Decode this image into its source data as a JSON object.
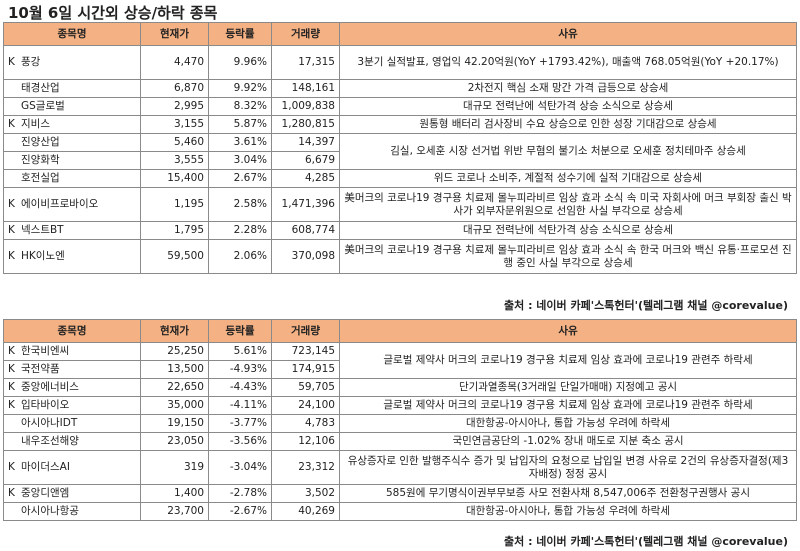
{
  "title": "10월 6일  시간외 상승/하락 종목",
  "headers": [
    "종목명",
    "현재가",
    "등락률",
    "거래량",
    "사유"
  ],
  "source": "출처 : 네이버 카페'스톡헌터'(텔레그램 채널 @corevalue)",
  "rising": [
    {
      "prefix": "K",
      "name": "풍강",
      "price": "4,470",
      "rate": "9.96%",
      "volume": "17,315",
      "reason": "3분기 실적발표, 영업익 42.20억원(YoY +1793.42%), 매출액 768.05억원(YoY +20.17%)"
    },
    {
      "prefix": "",
      "name": "태경산업",
      "price": "6,870",
      "rate": "9.92%",
      "volume": "148,161",
      "reason": "2차전지 핵심 소재 망간 가격 급등으로 상승세"
    },
    {
      "prefix": "",
      "name": "GS글로벌",
      "price": "2,995",
      "rate": "8.32%",
      "volume": "1,009,838",
      "reason": "대규모 전력난에 석탄가격 상승 소식으로 상승세"
    },
    {
      "prefix": "K",
      "name": "지비스",
      "price": "3,155",
      "rate": "5.87%",
      "volume": "1,280,815",
      "reason": "원통형 배터리 검사장비 수요 상승으로 인한 성장 기대감으로 상승세"
    },
    {
      "prefix": "",
      "name": "진양산업",
      "price": "5,460",
      "rate": "3.61%",
      "volume": "14,397",
      "reason": ""
    },
    {
      "prefix": "",
      "name": "진양화학",
      "price": "3,555",
      "rate": "3.04%",
      "volume": "6,679",
      "reason": ""
    },
    {
      "prefix": "",
      "name": "호전실업",
      "price": "15,400",
      "rate": "2.67%",
      "volume": "4,285",
      "reason": "위드 코로나 소비주, 계절적 성수기에 실적 기대감으로 상승세"
    },
    {
      "prefix": "K",
      "name": "에이비프로바이오",
      "price": "1,195",
      "rate": "2.58%",
      "volume": "1,471,396",
      "reason": "美머크의 코로나19 경구용 치료제 몰누피라비르 임상 효과 소식 속 미국 자회사에 머크 부회장 출신 박사가 외부자문위원으로 선임한 사실 부각으로 상승세"
    },
    {
      "prefix": "K",
      "name": "넥스트BT",
      "price": "1,795",
      "rate": "2.28%",
      "volume": "608,774",
      "reason": "대규모 전력난에 석탄가격 상승 소식으로 상승세"
    },
    {
      "prefix": "K",
      "name": "HK이노엔",
      "price": "59,500",
      "rate": "2.06%",
      "volume": "370,098",
      "reason": "美머크의 코로나19 경구용 치료제 몰누피라비르 임상 효과 소식 속 한국 머크와 백신 유통·프로모션 진행 중인 사실 부각으로 상승세"
    }
  ],
  "rising_merged_reason": "김실, 오세훈 시장 선거법 위반 무혐의 불기소 처분으로 오세훈 정치테마주 상승세",
  "falling": [
    {
      "prefix": "K",
      "name": "한국비엔씨",
      "price": "25,250",
      "rate": "5.61%",
      "volume": "723,145",
      "reason": "글로벌 제약사 머크의 코로나19 경구용 치료제 임상 효과에 코로나19 관련주 하락세"
    },
    {
      "prefix": "K",
      "name": "국전약품",
      "price": "13,500",
      "rate": "-4.93%",
      "volume": "174,915",
      "reason": ""
    },
    {
      "prefix": "K",
      "name": "중앙에너비스",
      "price": "22,650",
      "rate": "-4.43%",
      "volume": "59,705",
      "reason": "단기과열종목(3거래일 단일가매매) 지정예고 공시"
    },
    {
      "prefix": "K",
      "name": "입타바이오",
      "price": "35,000",
      "rate": "-4.11%",
      "volume": "24,100",
      "reason": "글로벌 제약사 머크의 코로나19 경구용 치료제 임상 효과에 코로나19 관련주 하락세"
    },
    {
      "prefix": "",
      "name": "아시아나IDT",
      "price": "19,150",
      "rate": "-3.77%",
      "volume": "4,783",
      "reason": "대한항공-아시아나, 통합 가능성 우려에 하락세"
    },
    {
      "prefix": "",
      "name": "내우조선해양",
      "price": "23,050",
      "rate": "-3.56%",
      "volume": "12,106",
      "reason": "국민연금공단의 -1.02% 장내 매도로 지분 축소 공시"
    },
    {
      "prefix": "K",
      "name": "마이더스AI",
      "price": "319",
      "rate": "-3.04%",
      "volume": "23,312",
      "reason": "유상증자로 인한 발행주식수 증가 및 납입자의 요청으로 납입일 변경 사유로 2건의 유상증자결정(제3자배정) 정정 공시"
    },
    {
      "prefix": "K",
      "name": "중앙디앤엠",
      "price": "1,400",
      "rate": "-2.78%",
      "volume": "3,502",
      "reason": "585원에 무기명식이권부무보증 사모 전환사채 8,547,006주 전환청구권행사 공시"
    },
    {
      "prefix": "",
      "name": "아시아나항공",
      "price": "23,700",
      "rate": "-2.67%",
      "volume": "40,269",
      "reason": "대한항공-아시아나, 통합 가능성 우려에 하락세"
    }
  ]
}
